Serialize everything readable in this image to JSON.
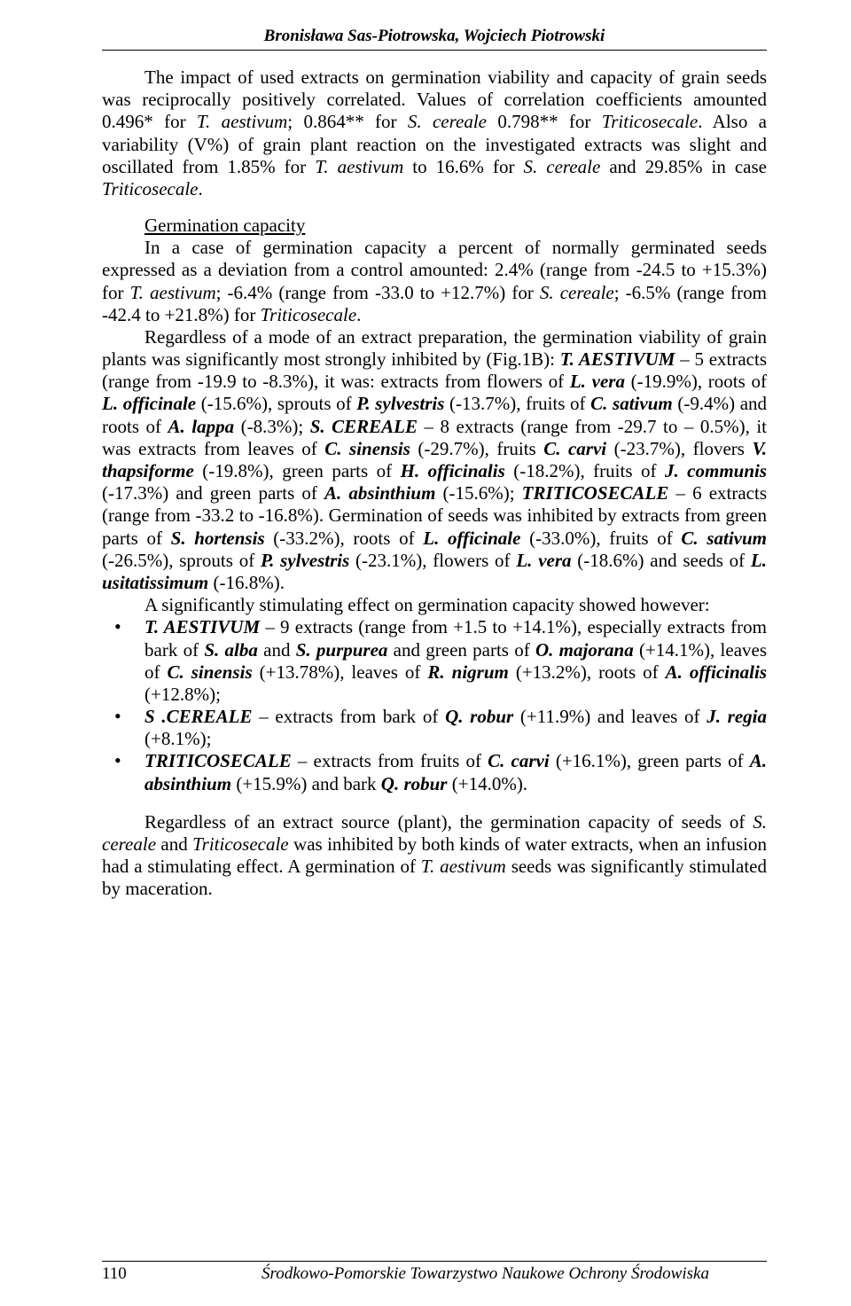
{
  "running_head": "Bronisława Sas-Piotrowska, Wojciech Piotrowski",
  "para1_html": "The impact of used extracts on germination viability and capacity of grain seeds was reciprocally positively correlated. Values of correlation coefficients amounted 0.496* for <i>T. aestivum</i>; 0.864** for <i>S. cereale</i> 0.798** for <i>Triticosecale</i>. Also a variability (V%) of grain plant reaction on the investigated extracts was slight and oscillated from 1.85% for <i>T. aestivum</i> to 16.6% for <i>S. cereale</i> and 29.85% in case <i>Triticosecale</i>.",
  "section_heading": "Germination capacity",
  "para2_html": "In a case of germination capacity a percent of normally germinated seeds expressed as a deviation from a control amounted: 2.4% (range from -24.5 to +15.3%) for <i>T. aestivum</i>; -6.4% (range from -33.0 to +12.7%) for <i>S. cereale</i>; -6.5% (range from -42.4 to +21.8%) for <i>Triticosecale</i>.",
  "para3_html": "Regardless of a mode of an extract preparation, the germination viability of grain plants was significantly most strongly inhibited by (Fig.1B): <b><i>T. AESTIVUM</i></b> – 5 extracts (range from -19.9 to -8.3%), it was: extracts from flowers of <b><i>L. vera</i></b> (-19.9%), roots of <b><i>L. officinale</i></b> (-15.6%), sprouts of <b><i>P. sylvestris</i></b> (-13.7%), fruits of <b><i>C. sativum</i></b> (-9.4%) and roots of <b><i>A. lappa</i></b> (-8.3%); <b><i>S. CEREALE</i></b> – 8 extracts (range from -29.7 to – 0.5%), it was extracts from leaves of <b><i>C. sinensis</i></b> (-29.7%), fruits <b><i>C. carvi</i></b> (-23.7%), flovers <b><i>V. thapsiforme</i></b> (-19.8%), green parts of <b><i>H. officinalis</i></b> (-18.2%), fruits of <b><i>J. communis</i></b> (-17.3%) and green parts of <b><i>A. absinthium</i></b> (-15.6%); <b><i>TRITICOSECALE</i></b> – 6 extracts (range from -33.2 to -16.8%). Germination of seeds was inhibited by extracts from green parts of <b><i>S. hortensis</i></b> (-33.2%), roots of <b><i>L. officinale</i></b> (-33.0%), fruits of <b><i>C. sativum</i></b> (-26.5%), sprouts of <b><i>P. sylvestris</i></b> (-23.1%), flowers of <b><i>L. vera</i></b> (-18.6%) and seeds of <b><i>L. usitatissimum</i></b> (-16.8%).",
  "para4_html": "A significantly stimulating effect on germination capacity showed however:",
  "bullets": [
    "<b><i>T. AESTIVUM</i></b> – 9 extracts (range from +1.5 to +14.1%), especially extracts from bark of <b><i>S. alba</i></b> and <b><i>S. purpurea</i></b> and green parts of <b><i>O. majorana</i></b> (+14.1%), leaves of <b><i>C. sinensis</i></b> (+13.78%), leaves of <b><i>R. nigrum</i></b> (+13.2%), roots of <b><i>A. officinalis</i></b> (+12.8%);",
    "<b><i>S .CEREALE</i></b> – extracts from bark of <b><i>Q. robur</i></b> (+11.9%) and leaves of <b><i>J. regia</i></b> (+8.1%);",
    "<b><i>TRITICOSECALE</i></b> – extracts from fruits of <b><i>C. carvi</i></b> (+16.1%), green parts of <b><i>A. absinthium</i></b> (+15.9%) and bark <b><i>Q. robur</i></b> (+14.0%)."
  ],
  "para5_html": "Regardless of an extract source (plant), the germination capacity of seeds of <i>S. cereale</i> and <i>Triticosecale</i> was inhibited by both kinds of water extracts, when an infusion had a stimulating effect. A germination of <i>T. aestivum</i> seeds was significantly stimulated by maceration.",
  "footer_page": "110",
  "footer_source": "Środkowo-Pomorskie Towarzystwo Naukowe Ochrony Środowiska"
}
